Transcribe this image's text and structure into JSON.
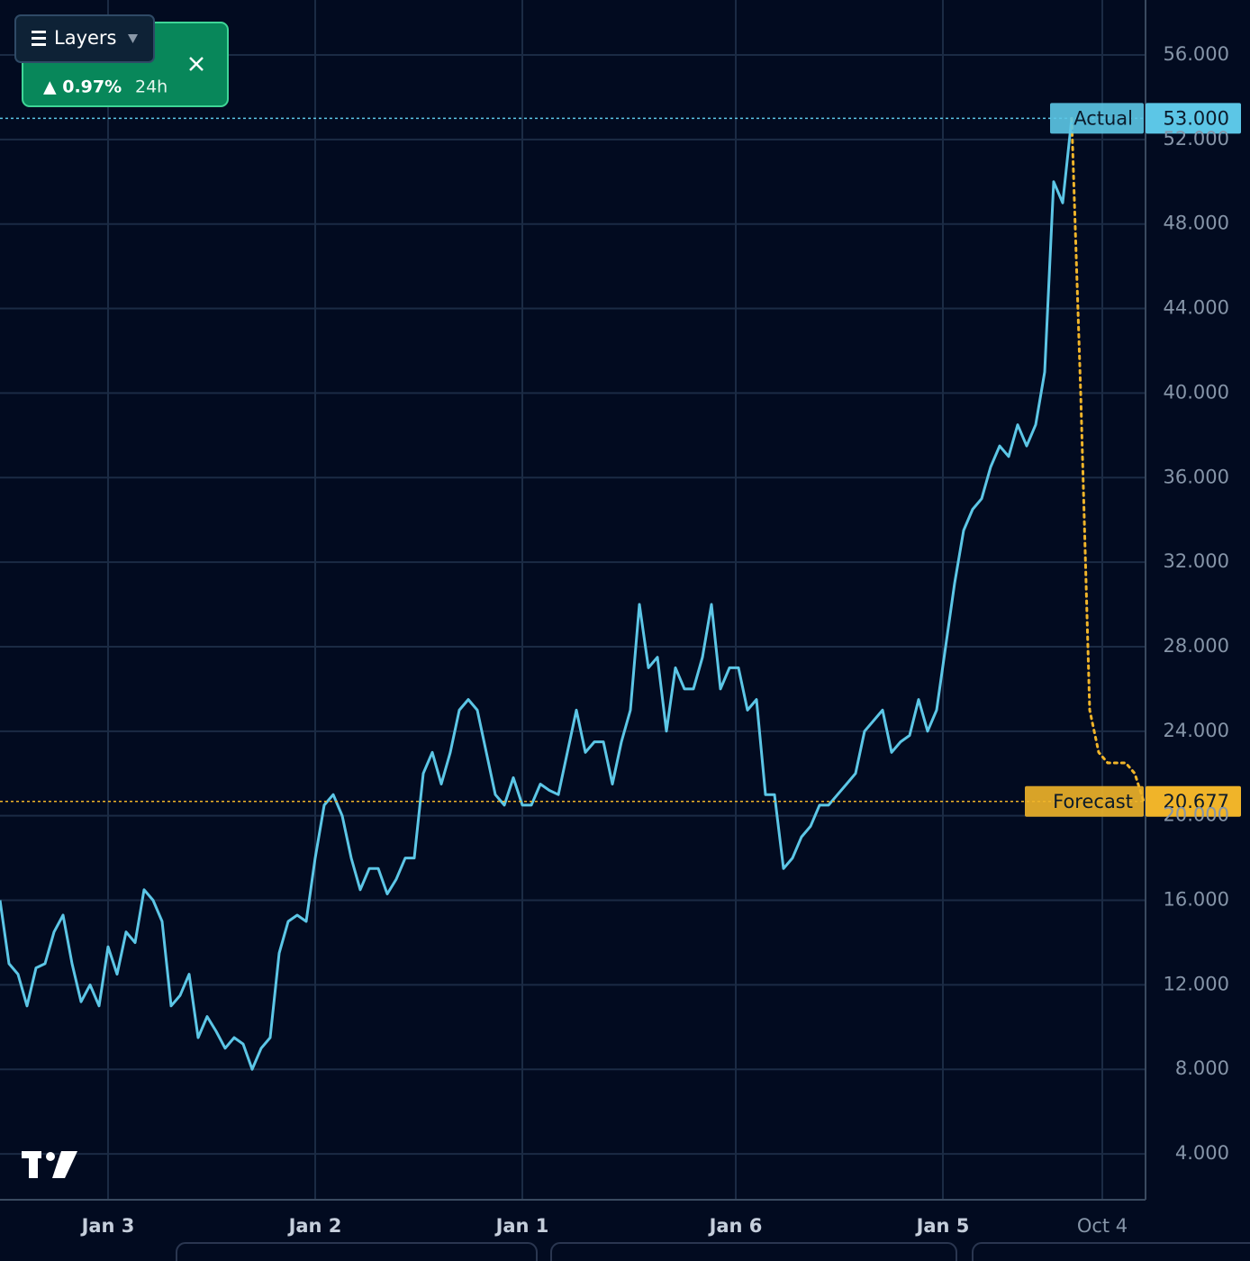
{
  "chart_data": {
    "type": "line",
    "layers_button": "Layers",
    "badge": {
      "change": "▲ 0.97%",
      "period": "24h"
    },
    "series": [
      {
        "name": "Actual",
        "color": "#5cc6e6",
        "last_value_label": "53.000",
        "x": [
          0,
          1,
          2,
          3,
          4,
          5,
          6,
          7,
          8,
          9,
          10,
          11,
          12,
          13,
          14,
          15,
          16,
          17,
          18,
          19,
          20,
          21,
          22,
          23,
          24,
          25,
          26,
          27,
          28,
          29,
          30,
          31,
          32,
          33,
          34,
          35,
          36,
          37,
          38,
          39,
          40,
          41,
          42,
          43,
          44,
          45,
          46,
          47,
          48,
          49,
          50,
          51,
          52,
          53,
          54,
          55,
          56,
          57,
          58,
          59,
          60,
          61,
          62,
          63,
          64,
          65,
          66,
          67,
          68,
          69,
          70,
          71,
          72,
          73,
          74,
          75,
          76,
          77,
          78,
          79,
          80,
          81,
          82,
          83,
          84,
          85,
          86,
          87,
          88,
          89,
          90,
          91,
          92,
          93,
          94,
          95,
          96,
          97,
          98,
          99,
          100,
          101,
          102,
          103,
          104,
          105,
          106,
          107,
          108,
          109,
          110,
          111,
          112,
          113,
          114,
          115,
          116,
          117,
          118,
          119
        ],
        "values": [
          16,
          13,
          12.5,
          11,
          12.8,
          13,
          14.5,
          15.3,
          13,
          11.2,
          12,
          11,
          13.8,
          12.5,
          14.5,
          14,
          16.5,
          16,
          15,
          11,
          11.5,
          12.5,
          9.5,
          10.5,
          9.8,
          9,
          9.5,
          9.2,
          8,
          9,
          9.5,
          13.5,
          15,
          15.3,
          15,
          18,
          20.5,
          21,
          20,
          18,
          16.5,
          17.5,
          17.5,
          16.3,
          17,
          18,
          18,
          22,
          23,
          21.5,
          23,
          25,
          25.5,
          25,
          23,
          21,
          20.5,
          21.8,
          20.5,
          20.5,
          21.5,
          21.2,
          21,
          23,
          25,
          23,
          23.5,
          23.5,
          21.5,
          23.5,
          25,
          30,
          27,
          27.5,
          24,
          27,
          26,
          26,
          27.5,
          30,
          26,
          27,
          27,
          25,
          25.5,
          21,
          21,
          17.5,
          18,
          19,
          19.5,
          20.5,
          20.5,
          21,
          21.5,
          22,
          24,
          24.5,
          25,
          23,
          23.5,
          23.8,
          25.5,
          24,
          25,
          28,
          31,
          33.5,
          34.5,
          35,
          36.5,
          37.5,
          37,
          38.5,
          37.5,
          38.5,
          41,
          50,
          49,
          53
        ]
      },
      {
        "name": "Forecast",
        "color": "#f0b429",
        "last_value_label": "20.677",
        "dashed": true,
        "x": [
          119,
          120,
          121,
          122,
          123,
          124,
          125,
          126,
          127
        ],
        "values": [
          53,
          40,
          25,
          23,
          22.5,
          22.5,
          22.5,
          22,
          20.677
        ]
      }
    ],
    "xlim": [
      0,
      127.2
    ],
    "xticks": [
      {
        "value": 12,
        "label": "Jan 3"
      },
      {
        "value": 35,
        "label": "Jan 2"
      },
      {
        "value": 58,
        "label": "Jan 1"
      },
      {
        "value": 81.7,
        "label": "Jan 6"
      },
      {
        "value": 104.7,
        "label": "Jan 5"
      },
      {
        "value": 122.4,
        "label": "Oct 4"
      }
    ],
    "ylim": [
      1.83,
      58.6
    ],
    "yticks": [
      {
        "value": 4,
        "label": "4.000"
      },
      {
        "value": 8,
        "label": "8.000"
      },
      {
        "value": 12,
        "label": "12.000"
      },
      {
        "value": 16,
        "label": "16.000"
      },
      {
        "value": 20,
        "label": "20.000"
      },
      {
        "value": 24,
        "label": "24.000"
      },
      {
        "value": 28,
        "label": "28.000"
      },
      {
        "value": 32,
        "label": "32.000"
      },
      {
        "value": 36,
        "label": "36.000"
      },
      {
        "value": 40,
        "label": "40.000"
      },
      {
        "value": 44,
        "label": "44.000"
      },
      {
        "value": 48,
        "label": "48.000"
      },
      {
        "value": 52,
        "label": "52.000"
      },
      {
        "value": 56,
        "label": "56.000"
      }
    ],
    "grid": true
  }
}
